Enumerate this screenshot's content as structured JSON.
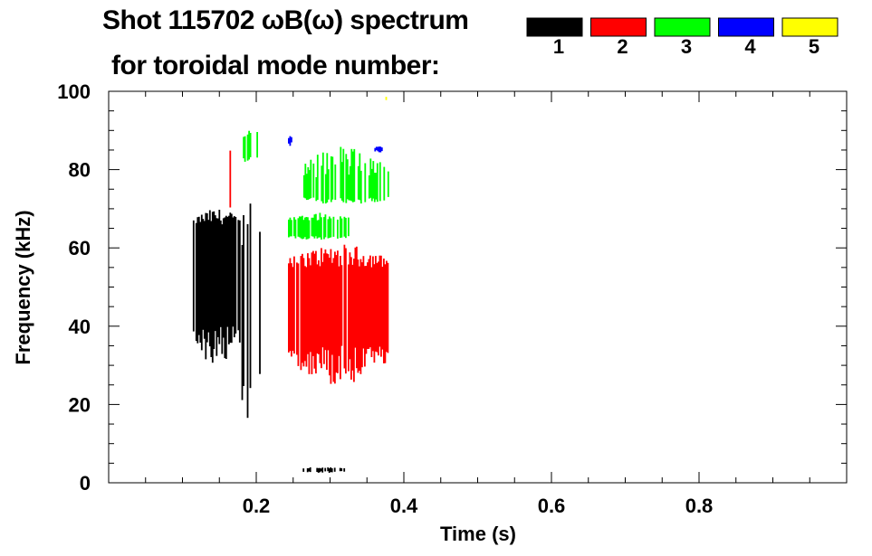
{
  "chart_data": {
    "type": "heatmap",
    "title_line1": "Shot 115702 ωB(ω) spectrum",
    "title_line2": "for toroidal mode number:",
    "xlabel": "Time (s)",
    "ylabel": "Frequency (kHz)",
    "xlim": [
      0,
      1.0
    ],
    "ylim": [
      0,
      100
    ],
    "xticks": [
      0.2,
      0.4,
      0.6,
      0.8
    ],
    "xtick_labels": [
      "0.2",
      "0.4",
      "0.6",
      "0.8"
    ],
    "yticks": [
      0,
      20,
      40,
      60,
      80,
      100
    ],
    "ytick_labels": [
      "0",
      "20",
      "40",
      "60",
      "80",
      "100"
    ],
    "legend": [
      {
        "label": "1",
        "color": "#000000"
      },
      {
        "label": "2",
        "color": "#ff0000"
      },
      {
        "label": "3",
        "color": "#00ff00"
      },
      {
        "label": "4",
        "color": "#0000ff"
      },
      {
        "label": "5",
        "color": "#ffff00"
      }
    ],
    "legend_placement": "top-right",
    "regions": [
      {
        "mode": "1",
        "t": [
          0.114,
          0.178
        ],
        "f": [
          29,
          70
        ],
        "core_f": [
          40,
          66
        ],
        "density": 0.9
      },
      {
        "mode": "1",
        "t": [
          0.178,
          0.205
        ],
        "f": [
          12,
          76
        ],
        "core_f": [
          30,
          60
        ],
        "density": 0.25
      },
      {
        "mode": "1",
        "t": [
          0.25,
          0.32
        ],
        "f": [
          2.5,
          4
        ],
        "core_f": [
          3,
          3.6
        ],
        "density": 0.4
      },
      {
        "mode": "2",
        "t": [
          0.243,
          0.378
        ],
        "f": [
          25,
          61
        ],
        "core_f": [
          35,
          55
        ],
        "density": 0.95
      },
      {
        "mode": "2",
        "t": [
          0.16,
          0.205
        ],
        "f": [
          60,
          90
        ],
        "core_f": [
          75,
          80
        ],
        "density": 0.12
      },
      {
        "mode": "3",
        "t": [
          0.243,
          0.325
        ],
        "f": [
          62,
          69
        ],
        "core_f": [
          63,
          67
        ],
        "density": 0.8
      },
      {
        "mode": "3",
        "t": [
          0.26,
          0.378
        ],
        "f": [
          71,
          86
        ],
        "core_f": [
          73,
          78
        ],
        "density": 0.7
      },
      {
        "mode": "3",
        "t": [
          0.18,
          0.21
        ],
        "f": [
          80,
          91
        ],
        "core_f": [
          84,
          88
        ],
        "density": 0.25
      },
      {
        "mode": "4",
        "t": [
          0.243,
          0.247
        ],
        "f": [
          86,
          89
        ],
        "core_f": [
          87,
          88
        ],
        "density": 0.6
      },
      {
        "mode": "4",
        "t": [
          0.36,
          0.37
        ],
        "f": [
          84,
          86
        ],
        "core_f": [
          85,
          85.5
        ],
        "density": 0.6
      },
      {
        "mode": "5",
        "t": [
          0.375,
          0.38
        ],
        "f": [
          97,
          99
        ],
        "core_f": [
          98,
          98.5
        ],
        "density": 0.6
      }
    ]
  }
}
